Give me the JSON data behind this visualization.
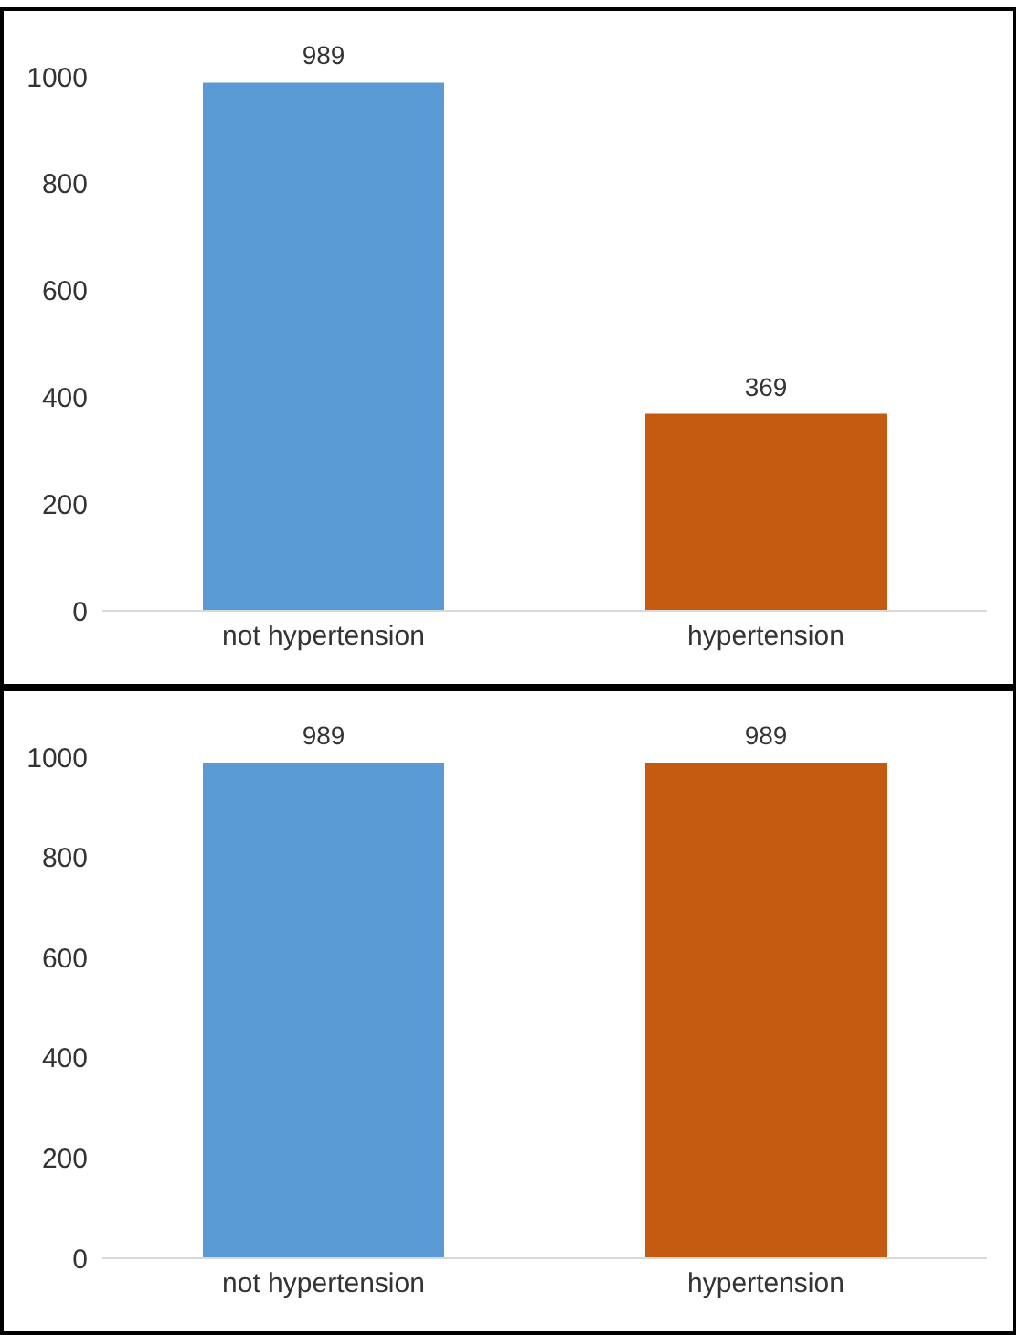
{
  "chart_data": [
    {
      "type": "bar",
      "categories": [
        "not hypertension",
        "hypertension"
      ],
      "values": [
        989,
        369
      ],
      "colors": [
        "#5b9bd5",
        "#c55a11"
      ],
      "ylim": [
        0,
        1000
      ],
      "yticks": [
        0,
        200,
        400,
        600,
        800,
        1000
      ],
      "grid": false,
      "data_labels": true
    },
    {
      "type": "bar",
      "categories": [
        "not hypertension",
        "hypertension"
      ],
      "values": [
        989,
        989
      ],
      "colors": [
        "#5b9bd5",
        "#c55a11"
      ],
      "ylim": [
        0,
        1000
      ],
      "yticks": [
        0,
        200,
        400,
        600,
        800,
        1000
      ],
      "grid": false,
      "data_labels": true
    }
  ]
}
